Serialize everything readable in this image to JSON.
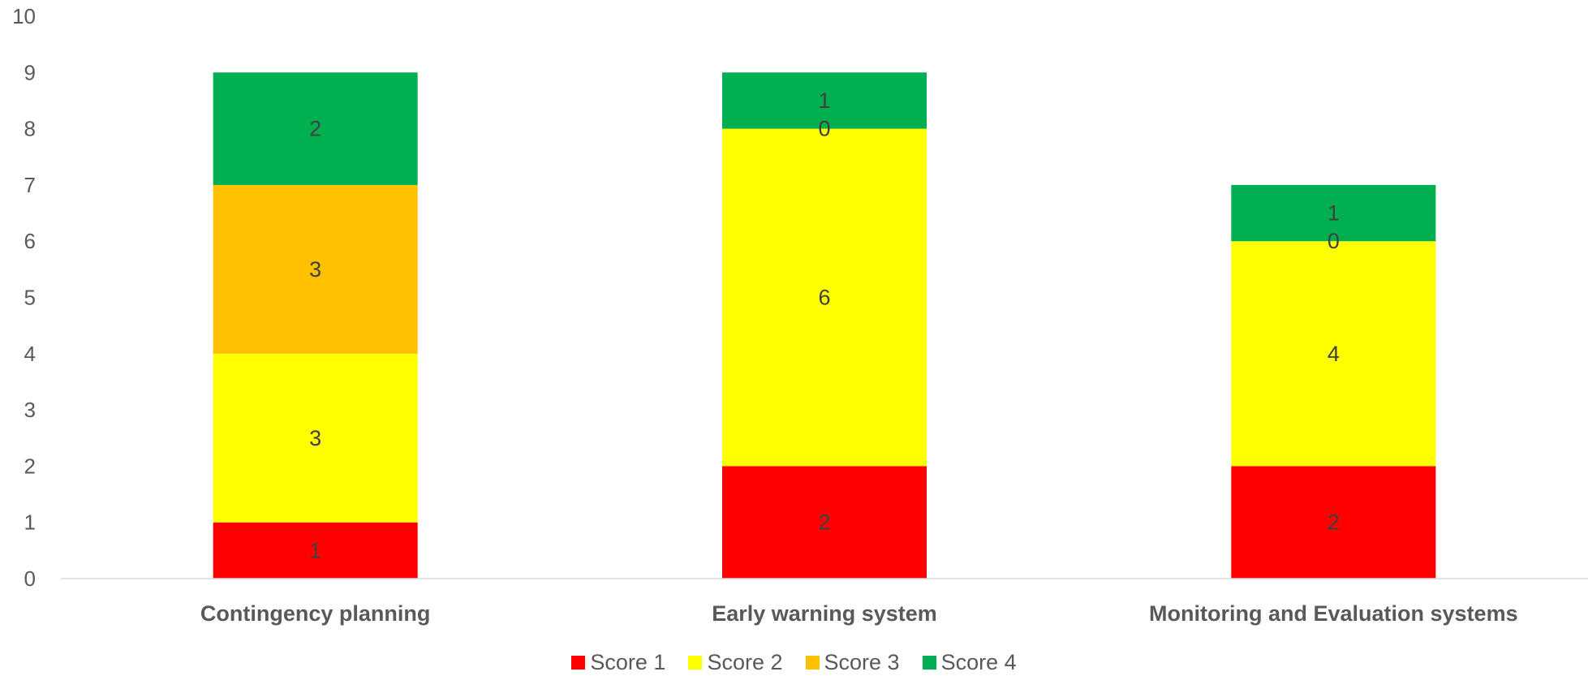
{
  "chart_data": {
    "type": "bar",
    "stacked": true,
    "title": "",
    "xlabel": "",
    "ylabel": "",
    "ylim": [
      0,
      10
    ],
    "yticks": [
      0,
      1,
      2,
      3,
      4,
      5,
      6,
      7,
      8,
      9,
      10
    ],
    "grid": false,
    "legend_position": "bottom",
    "categories": [
      "Contingency planning",
      "Early warning system",
      "Monitoring and Evaluation systems"
    ],
    "series": [
      {
        "name": "Score 1",
        "color": "#FF0000",
        "values": [
          1,
          2,
          2
        ],
        "labels": [
          "1",
          "2",
          "2"
        ]
      },
      {
        "name": "Score 2",
        "color": "#FFFF00",
        "values": [
          3,
          6,
          4
        ],
        "labels": [
          "3",
          "6",
          "4"
        ]
      },
      {
        "name": "Score 3",
        "color": "#FFC000",
        "values": [
          3,
          0,
          0
        ],
        "labels": [
          "3",
          "0",
          "0"
        ]
      },
      {
        "name": "Score 4",
        "color": "#00B050",
        "values": [
          2,
          1,
          1
        ],
        "labels": [
          "2",
          "1",
          "1"
        ]
      }
    ]
  }
}
